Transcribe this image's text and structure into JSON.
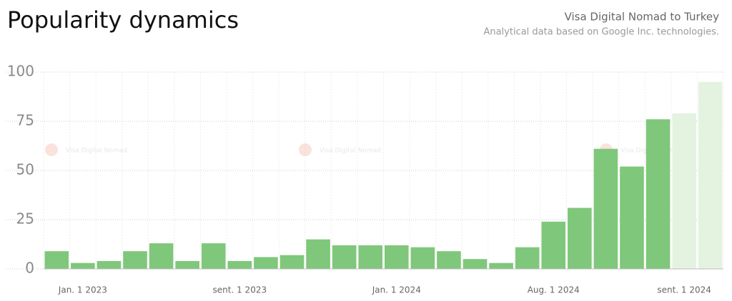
{
  "chart_data": {
    "type": "bar",
    "title": "Popularity dynamics",
    "subtitle": "Visa Digital Nomad to Turkey",
    "source_note": "Analytical data based on Google Inc. technologies.",
    "watermark": "Visa Digital Nomad",
    "categories": [
      null,
      "Jan. 1 2023",
      null,
      null,
      null,
      null,
      null,
      "sent. 1 2023",
      null,
      null,
      null,
      null,
      null,
      "Jan. 1 2024",
      null,
      null,
      null,
      null,
      null,
      "Aug. 1 2024",
      null,
      null,
      null,
      null,
      "sent. 1 2024",
      null
    ],
    "values": [
      9,
      3,
      4,
      9,
      13,
      4,
      13,
      4,
      6,
      7,
      15,
      12,
      12,
      12,
      11,
      9,
      5,
      3,
      11,
      24,
      31,
      61,
      52,
      76,
      79,
      95
    ],
    "colors": [
      "#7fc77a",
      "#7fc77a",
      "#7fc77a",
      "#7fc77a",
      "#7fc77a",
      "#7fc77a",
      "#7fc77a",
      "#7fc77a",
      "#7fc77a",
      "#7fc77a",
      "#7fc77a",
      "#7fc77a",
      "#7fc77a",
      "#7fc77a",
      "#7fc77a",
      "#7fc77a",
      "#7fc77a",
      "#7fc77a",
      "#7fc77a",
      "#7fc77a",
      "#7fc77a",
      "#7fc77a",
      "#7fc77a",
      "#7fc77a",
      "#e4f3e0",
      "#e4f3e0"
    ],
    "ylim": [
      0,
      100
    ],
    "yticks": [
      0,
      25,
      50,
      75,
      100
    ],
    "grid": true
  }
}
